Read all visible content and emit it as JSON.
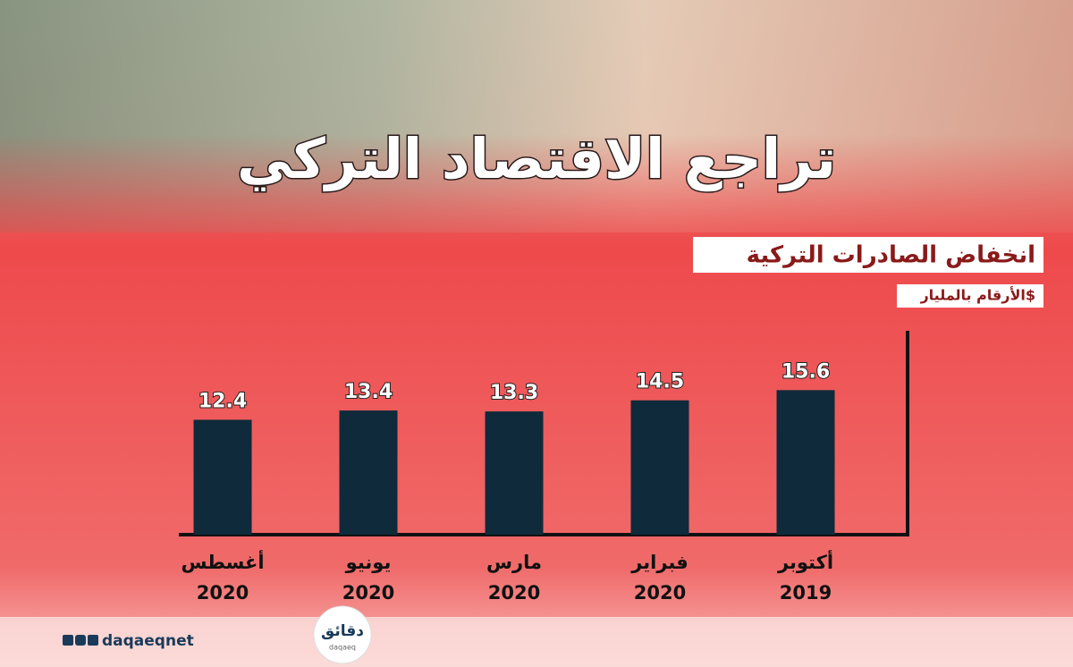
{
  "chart_data": {
    "type": "bar",
    "title": "تراجع الاقتصاد التركي",
    "subtitle": "انخفاض الصادرات التركية",
    "note": "الأرقام بالمليار$",
    "categories": [
      [
        "أكتوبر",
        "2019"
      ],
      [
        "فبراير",
        "2020"
      ],
      [
        "مارس",
        "2020"
      ],
      [
        "يونيو",
        "2020"
      ],
      [
        "أغسطس",
        "2020"
      ]
    ],
    "values": [
      15.6,
      14.5,
      13.3,
      13.4,
      12.4
    ],
    "color": "#0f2a3a",
    "ylim": [
      0,
      22
    ]
  },
  "brand": {
    "handle": "daqaeqnet",
    "logo": "دقائق",
    "logo_sub": "daqaeq"
  }
}
